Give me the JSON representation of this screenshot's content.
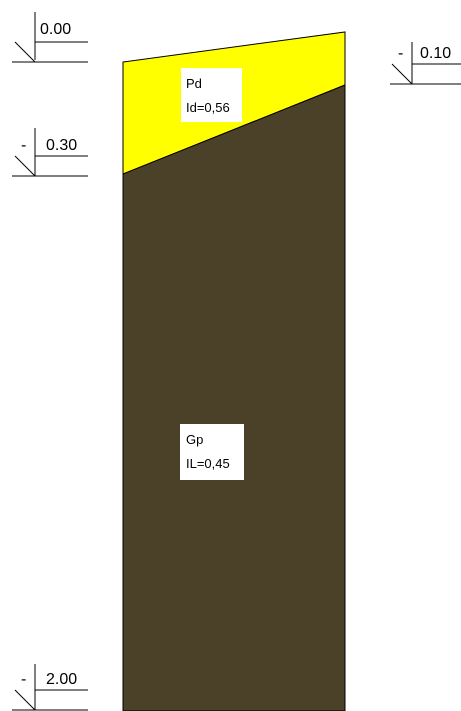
{
  "levels": {
    "top_left": {
      "sign": "",
      "value": "0.00"
    },
    "top_right": {
      "sign": "-",
      "value": "0.10"
    },
    "layer_boundary": {
      "sign": "-",
      "value": "0.30"
    },
    "bottom": {
      "sign": "-",
      "value": "2.00"
    }
  },
  "layers": [
    {
      "code": "Pd",
      "param": "Id=0,56",
      "color": "#ffff00"
    },
    {
      "code": "Gp",
      "param": "IL=0,45",
      "color": "#4b4128"
    }
  ],
  "outline_color": "#000000"
}
